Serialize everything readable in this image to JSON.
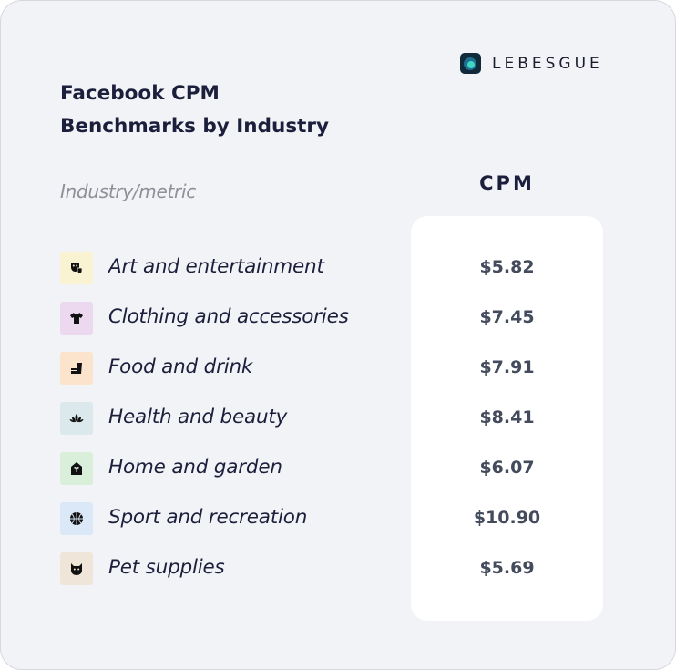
{
  "brand": {
    "name": "LEBESGUE"
  },
  "chart_data": {
    "type": "table",
    "title_lines": [
      "Facebook CPM",
      "Benchmarks by Industry"
    ],
    "columns": [
      "Industry/metric",
      "CPM"
    ],
    "rows": [
      {
        "industry": "Art and entertainment",
        "cpm": "$5.82",
        "value": 5.82,
        "icon": "theater-masks-icon",
        "icon_bg": "#faf3d1"
      },
      {
        "industry": "Clothing and accessories",
        "cpm": "$7.45",
        "value": 7.45,
        "icon": "tshirt-icon",
        "icon_bg": "#ecd9ef"
      },
      {
        "industry": "Food and drink",
        "cpm": "$7.91",
        "value": 7.91,
        "icon": "burger-drink-icon",
        "icon_bg": "#fbe3cc"
      },
      {
        "industry": "Health and beauty",
        "cpm": "$8.41",
        "value": 8.41,
        "icon": "lotus-icon",
        "icon_bg": "#dce9ec"
      },
      {
        "industry": "Home and garden",
        "cpm": "$6.07",
        "value": 6.07,
        "icon": "house-plant-icon",
        "icon_bg": "#d9efd9"
      },
      {
        "industry": "Sport and recreation",
        "cpm": "$10.90",
        "value": 10.9,
        "icon": "basketball-icon",
        "icon_bg": "#dbe8f8"
      },
      {
        "industry": "Pet supplies",
        "cpm": "$5.69",
        "value": 5.69,
        "icon": "cat-face-icon",
        "icon_bg": "#f0e5d9"
      }
    ]
  }
}
